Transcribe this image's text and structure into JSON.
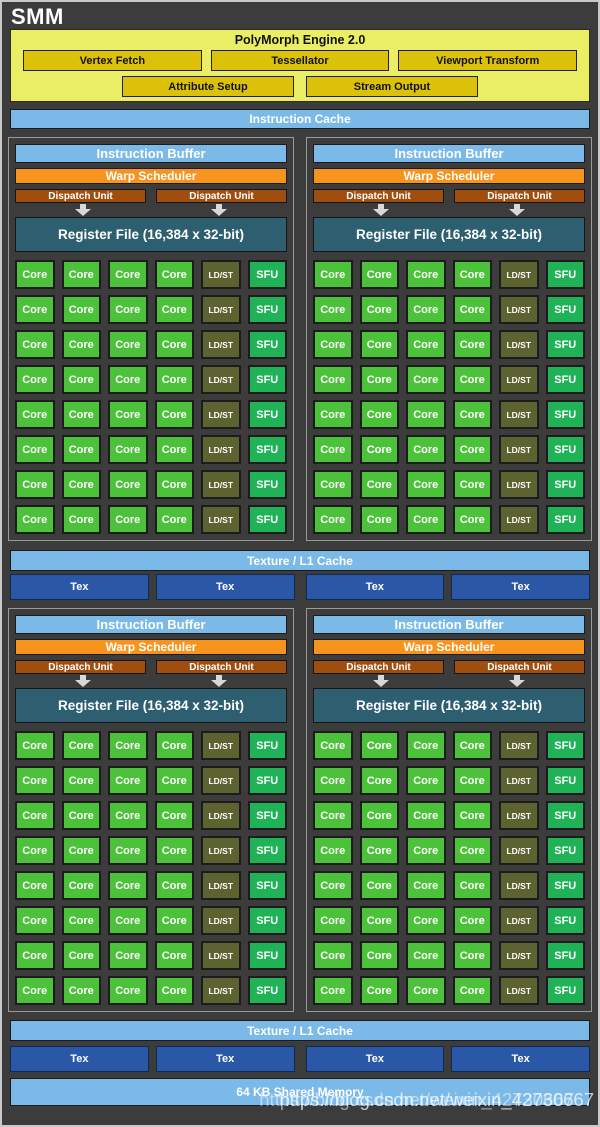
{
  "window": {
    "title": "SMM"
  },
  "polymorph": {
    "title": "PolyMorph Engine 2.0",
    "units_row1": [
      "Vertex Fetch",
      "Tessellator",
      "Viewport Transform"
    ],
    "units_row2": [
      "Attribute Setup",
      "Stream Output"
    ]
  },
  "instruction_cache_label": "Instruction Cache",
  "partition": {
    "count": 4,
    "rows": 8,
    "core_columns": 4,
    "instruction_buffer_label": "Instruction Buffer",
    "warp_scheduler_label": "Warp Scheduler",
    "dispatch_unit_label": "Dispatch Unit",
    "dispatch_units_per_partition": 2,
    "register_file_label": "Register File (16,384 x 32-bit)",
    "core_label": "Core",
    "ldst_label": "LD/ST",
    "sfu_label": "SFU"
  },
  "texture": {
    "cache_label": "Texture / L1 Cache",
    "tex_label": "Tex",
    "tex_count": 4
  },
  "shared_memory_label": "64 KB Shared Memory",
  "watermark": "https://blog.csdn.net/weixin_42730667",
  "colors": {
    "bg": "#3c3c3c",
    "outer_border": "#c9c9c9",
    "yellow": "#e9ee65",
    "gold": "#dcc10b",
    "light_blue": "#7ab9e8",
    "orange": "#f7941e",
    "dispatch": "#a04e10",
    "register": "#2d5f70",
    "core": "#4cc13a",
    "ldst": "#5d6231",
    "sfu": "#1fb257",
    "tex": "#2a57a6",
    "quad_border": "#9b9b9b"
  }
}
